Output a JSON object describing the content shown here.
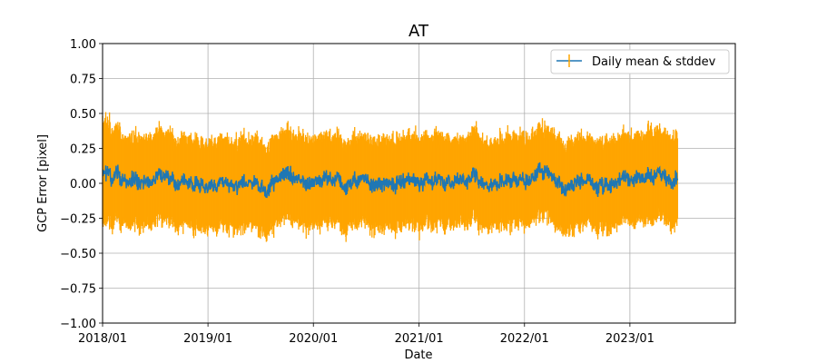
{
  "chart_data": {
    "type": "line",
    "title": "AT",
    "xlabel": "Date",
    "ylabel": "GCP Error [pixel]",
    "x_tick_labels": [
      "2018/01",
      "2019/01",
      "2020/01",
      "2021/01",
      "2022/01",
      "2023/01"
    ],
    "x_ticks": [
      "2018-01-01",
      "2019-01-01",
      "2020-01-01",
      "2021-01-01",
      "2022-01-01",
      "2023-01-01"
    ],
    "xlim": [
      "2018-01-01",
      "2024-01-01"
    ],
    "ylim": [
      -1.0,
      1.0
    ],
    "y_ticks": [
      -1.0,
      -0.75,
      -0.5,
      -0.25,
      0.0,
      0.25,
      0.5,
      0.75,
      1.0
    ],
    "y_tick_labels": [
      "−1.00",
      "−0.75",
      "−0.50",
      "−0.25",
      "0.00",
      "0.25",
      "0.50",
      "0.75",
      "1.00"
    ],
    "grid": true,
    "legend_position": "top-right",
    "series": [
      {
        "name": "Daily mean & stddev",
        "color": "#1f77b4",
        "errorbar_color": "#ffa500",
        "x_start": "2018-01-01",
        "x_end": "2023-06-15",
        "mean_approx": 0.02,
        "mean_range": [
          -0.1,
          0.15
        ],
        "stddev_approx": 0.27,
        "upper_range": [
          0.2,
          0.6
        ],
        "lower_range": [
          -0.45,
          -0.15
        ]
      }
    ]
  }
}
